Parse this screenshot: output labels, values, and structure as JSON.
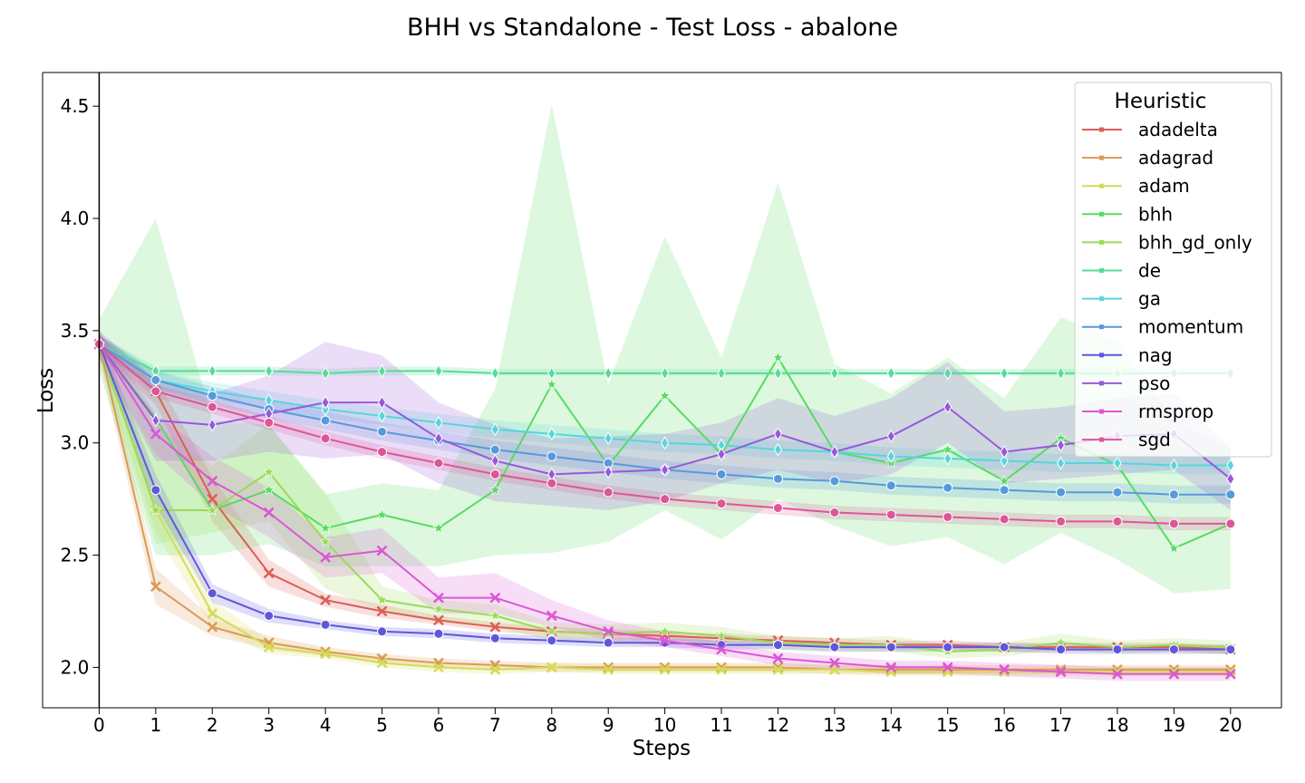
{
  "chart_data": {
    "type": "line",
    "title": "BHH vs Standalone - Test Loss - abalone",
    "xlabel": "Steps",
    "ylabel": "Loss",
    "x": [
      0,
      1,
      2,
      3,
      4,
      5,
      6,
      7,
      8,
      9,
      10,
      11,
      12,
      13,
      14,
      15,
      16,
      17,
      18,
      19,
      20
    ],
    "xlim": [
      -1.0,
      20.9
    ],
    "ylim": [
      1.82,
      4.65
    ],
    "yticks": [
      2.0,
      2.5,
      3.0,
      3.5,
      4.0,
      4.5
    ],
    "ytick_labels": [
      "2.0",
      "2.5",
      "3.0",
      "3.5",
      "4.0",
      "4.5"
    ],
    "xtick_labels": [
      "0",
      "1",
      "2",
      "3",
      "4",
      "5",
      "6",
      "7",
      "8",
      "9",
      "10",
      "11",
      "12",
      "13",
      "14",
      "15",
      "16",
      "17",
      "18",
      "19",
      "20"
    ],
    "legend": {
      "title": "Heuristic",
      "position": "top-right"
    },
    "grid": false,
    "series": [
      {
        "name": "adadelta",
        "color": "#db5f57",
        "marker": "x",
        "values": [
          3.44,
          3.23,
          2.75,
          2.42,
          2.3,
          2.25,
          2.21,
          2.18,
          2.16,
          2.15,
          2.14,
          2.13,
          2.12,
          2.11,
          2.1,
          2.1,
          2.09,
          2.09,
          2.09,
          2.09,
          2.08
        ],
        "lower": [
          3.4,
          3.17,
          2.65,
          2.36,
          2.27,
          2.22,
          2.19,
          2.16,
          2.14,
          2.13,
          2.12,
          2.11,
          2.1,
          2.09,
          2.08,
          2.08,
          2.07,
          2.07,
          2.07,
          2.07,
          2.06
        ],
        "upper": [
          3.48,
          3.29,
          2.85,
          2.48,
          2.33,
          2.28,
          2.23,
          2.2,
          2.18,
          2.17,
          2.16,
          2.15,
          2.14,
          2.13,
          2.12,
          2.12,
          2.11,
          2.11,
          2.11,
          2.11,
          2.1
        ]
      },
      {
        "name": "adagrad",
        "color": "#db9a57",
        "marker": "x",
        "values": [
          3.44,
          2.36,
          2.18,
          2.11,
          2.07,
          2.04,
          2.02,
          2.01,
          2.0,
          2.0,
          2.0,
          2.0,
          2.0,
          1.99,
          1.99,
          1.99,
          1.99,
          1.99,
          1.99,
          1.99,
          1.99
        ],
        "lower": [
          3.38,
          2.28,
          2.14,
          2.08,
          2.05,
          2.02,
          2.0,
          1.99,
          1.98,
          1.98,
          1.98,
          1.98,
          1.98,
          1.97,
          1.97,
          1.97,
          1.97,
          1.97,
          1.97,
          1.97,
          1.97
        ],
        "upper": [
          3.5,
          2.44,
          2.22,
          2.14,
          2.09,
          2.06,
          2.04,
          2.03,
          2.02,
          2.02,
          2.02,
          2.02,
          2.02,
          2.01,
          2.01,
          2.01,
          2.01,
          2.01,
          2.01,
          2.01,
          2.01
        ]
      },
      {
        "name": "adam",
        "color": "#d5db57",
        "marker": "x",
        "values": [
          3.44,
          2.7,
          2.24,
          2.09,
          2.06,
          2.02,
          2.0,
          1.99,
          2.0,
          1.99,
          1.99,
          1.99,
          1.99,
          1.99,
          1.98,
          1.98,
          1.98,
          1.98,
          1.98,
          1.98,
          1.98
        ],
        "lower": [
          3.38,
          2.6,
          2.18,
          2.06,
          2.04,
          2.0,
          1.98,
          1.97,
          1.98,
          1.97,
          1.97,
          1.97,
          1.97,
          1.97,
          1.96,
          1.96,
          1.96,
          1.96,
          1.96,
          1.96,
          1.96
        ],
        "upper": [
          3.5,
          2.8,
          2.3,
          2.12,
          2.08,
          2.04,
          2.02,
          2.01,
          2.02,
          2.01,
          2.01,
          2.01,
          2.01,
          2.01,
          2.0,
          2.0,
          2.0,
          2.0,
          2.0,
          2.0,
          2.0
        ]
      },
      {
        "name": "bhh",
        "color": "#57db5f",
        "marker": "star",
        "values": [
          3.44,
          3.11,
          2.7,
          2.79,
          2.62,
          2.68,
          2.62,
          2.79,
          3.26,
          2.9,
          3.21,
          2.95,
          3.38,
          2.96,
          2.91,
          2.97,
          2.83,
          3.02,
          2.9,
          2.53,
          2.64
        ],
        "lower": [
          3.32,
          2.5,
          2.5,
          2.55,
          2.45,
          2.45,
          2.45,
          2.5,
          2.51,
          2.56,
          2.7,
          2.57,
          2.75,
          2.63,
          2.54,
          2.58,
          2.46,
          2.6,
          2.48,
          2.33,
          2.35
        ],
        "upper": [
          3.55,
          4.0,
          3.1,
          3.08,
          2.77,
          2.82,
          2.79,
          3.24,
          4.51,
          3.26,
          3.92,
          3.38,
          4.16,
          3.35,
          3.22,
          3.38,
          3.2,
          3.56,
          3.45,
          3.1,
          2.98
        ]
      },
      {
        "name": "bhh_gd_only",
        "color": "#9adb57",
        "marker": "star",
        "values": [
          3.44,
          2.7,
          2.7,
          2.87,
          2.56,
          2.3,
          2.26,
          2.23,
          2.16,
          2.15,
          2.16,
          2.14,
          2.11,
          2.1,
          2.1,
          2.07,
          2.08,
          2.11,
          2.09,
          2.1,
          2.09
        ],
        "lower": [
          3.38,
          2.55,
          2.6,
          2.65,
          2.35,
          2.25,
          2.2,
          2.18,
          2.12,
          2.11,
          2.12,
          2.1,
          2.08,
          2.07,
          2.07,
          2.04,
          2.05,
          2.08,
          2.06,
          2.07,
          2.06
        ],
        "upper": [
          3.5,
          3.08,
          2.9,
          3.08,
          2.78,
          2.36,
          2.3,
          2.28,
          2.2,
          2.19,
          2.2,
          2.18,
          2.14,
          2.13,
          2.14,
          2.1,
          2.11,
          2.15,
          2.12,
          2.13,
          2.12
        ]
      },
      {
        "name": "de",
        "color": "#57db9a",
        "marker": "diamond",
        "values": [
          3.44,
          3.32,
          3.32,
          3.32,
          3.31,
          3.32,
          3.32,
          3.31,
          3.31,
          3.31,
          3.31,
          3.31,
          3.31,
          3.31,
          3.31,
          3.31,
          3.31,
          3.31,
          3.31,
          3.31,
          3.31
        ],
        "lower": [
          3.4,
          3.3,
          3.3,
          3.3,
          3.3,
          3.3,
          3.3,
          3.3,
          3.3,
          3.3,
          3.3,
          3.3,
          3.3,
          3.3,
          3.3,
          3.3,
          3.3,
          3.3,
          3.3,
          3.3,
          3.3
        ],
        "upper": [
          3.48,
          3.34,
          3.34,
          3.34,
          3.33,
          3.34,
          3.34,
          3.33,
          3.33,
          3.33,
          3.33,
          3.33,
          3.33,
          3.33,
          3.33,
          3.33,
          3.33,
          3.33,
          3.33,
          3.33,
          3.33
        ]
      },
      {
        "name": "ga",
        "color": "#57d5db",
        "marker": "diamond",
        "values": [
          3.44,
          3.28,
          3.23,
          3.19,
          3.15,
          3.12,
          3.09,
          3.06,
          3.04,
          3.02,
          3.0,
          2.99,
          2.97,
          2.96,
          2.94,
          2.93,
          2.92,
          2.91,
          2.91,
          2.9,
          2.9
        ],
        "lower": [
          3.4,
          3.24,
          3.19,
          3.15,
          3.11,
          3.08,
          3.05,
          3.02,
          3.0,
          2.98,
          2.96,
          2.95,
          2.93,
          2.92,
          2.9,
          2.89,
          2.88,
          2.87,
          2.87,
          2.86,
          2.86
        ],
        "upper": [
          3.48,
          3.32,
          3.27,
          3.23,
          3.19,
          3.16,
          3.13,
          3.1,
          3.08,
          3.06,
          3.04,
          3.03,
          3.01,
          3.0,
          2.98,
          2.97,
          2.96,
          2.95,
          2.95,
          2.94,
          2.94
        ]
      },
      {
        "name": "momentum",
        "color": "#579adb",
        "marker": "circle",
        "values": [
          3.44,
          3.28,
          3.21,
          3.15,
          3.1,
          3.05,
          3.01,
          2.97,
          2.94,
          2.91,
          2.88,
          2.86,
          2.84,
          2.83,
          2.81,
          2.8,
          2.79,
          2.78,
          2.78,
          2.77,
          2.77
        ],
        "lower": [
          3.4,
          3.24,
          3.17,
          3.11,
          3.06,
          3.01,
          2.97,
          2.93,
          2.9,
          2.87,
          2.84,
          2.82,
          2.8,
          2.79,
          2.77,
          2.76,
          2.75,
          2.74,
          2.74,
          2.73,
          2.73
        ],
        "upper": [
          3.48,
          3.32,
          3.25,
          3.19,
          3.14,
          3.09,
          3.05,
          3.01,
          2.98,
          2.95,
          2.92,
          2.9,
          2.88,
          2.87,
          2.85,
          2.84,
          2.83,
          2.82,
          2.82,
          2.81,
          2.81
        ]
      },
      {
        "name": "nag",
        "color": "#5f57db",
        "marker": "circle",
        "values": [
          3.44,
          2.79,
          2.33,
          2.23,
          2.19,
          2.16,
          2.15,
          2.13,
          2.12,
          2.11,
          2.11,
          2.1,
          2.1,
          2.09,
          2.09,
          2.09,
          2.09,
          2.08,
          2.08,
          2.08,
          2.08
        ],
        "lower": [
          3.4,
          2.72,
          2.29,
          2.2,
          2.17,
          2.14,
          2.13,
          2.11,
          2.1,
          2.09,
          2.09,
          2.08,
          2.08,
          2.07,
          2.07,
          2.07,
          2.07,
          2.06,
          2.06,
          2.06,
          2.06
        ],
        "upper": [
          3.48,
          2.86,
          2.37,
          2.26,
          2.21,
          2.18,
          2.17,
          2.15,
          2.14,
          2.13,
          2.13,
          2.12,
          2.12,
          2.11,
          2.11,
          2.11,
          2.11,
          2.1,
          2.1,
          2.1,
          2.1
        ]
      },
      {
        "name": "pso",
        "color": "#9a57db",
        "marker": "diamond",
        "values": [
          3.44,
          3.1,
          3.08,
          3.13,
          3.18,
          3.18,
          3.02,
          2.92,
          2.86,
          2.87,
          2.88,
          2.95,
          3.04,
          2.96,
          3.03,
          3.16,
          2.96,
          2.99,
          3.03,
          3.04,
          2.84
        ],
        "lower": [
          3.38,
          2.92,
          2.92,
          2.96,
          2.93,
          2.95,
          2.82,
          2.74,
          2.72,
          2.7,
          2.74,
          2.82,
          2.88,
          2.82,
          2.86,
          3.0,
          2.82,
          2.84,
          2.86,
          2.88,
          2.7
        ],
        "upper": [
          3.5,
          3.28,
          3.22,
          3.3,
          3.45,
          3.39,
          3.18,
          3.08,
          3.02,
          3.03,
          3.04,
          3.09,
          3.2,
          3.12,
          3.2,
          3.36,
          3.14,
          3.16,
          3.2,
          3.22,
          2.98
        ]
      },
      {
        "name": "rmsprop",
        "color": "#db57d5",
        "marker": "x",
        "values": [
          3.44,
          3.04,
          2.83,
          2.69,
          2.49,
          2.52,
          2.31,
          2.31,
          2.23,
          2.16,
          2.12,
          2.08,
          2.04,
          2.02,
          2.0,
          2.0,
          1.99,
          1.98,
          1.97,
          1.97,
          1.97
        ],
        "lower": [
          3.38,
          2.95,
          2.72,
          2.58,
          2.4,
          2.42,
          2.24,
          2.24,
          2.18,
          2.12,
          2.09,
          2.05,
          2.01,
          1.99,
          1.97,
          1.97,
          1.96,
          1.95,
          1.94,
          1.94,
          1.94
        ],
        "upper": [
          3.5,
          3.13,
          2.94,
          2.8,
          2.58,
          2.62,
          2.4,
          2.42,
          2.3,
          2.21,
          2.16,
          2.11,
          2.07,
          2.05,
          2.03,
          2.03,
          2.02,
          2.01,
          2.0,
          2.0,
          2.0
        ]
      },
      {
        "name": "sgd",
        "color": "#db5797",
        "marker": "circle",
        "values": [
          3.44,
          3.23,
          3.16,
          3.09,
          3.02,
          2.96,
          2.91,
          2.86,
          2.82,
          2.78,
          2.75,
          2.73,
          2.71,
          2.69,
          2.68,
          2.67,
          2.66,
          2.65,
          2.65,
          2.64,
          2.64
        ],
        "lower": [
          3.4,
          3.2,
          3.13,
          3.06,
          2.99,
          2.93,
          2.88,
          2.83,
          2.79,
          2.75,
          2.72,
          2.7,
          2.68,
          2.66,
          2.65,
          2.64,
          2.63,
          2.62,
          2.62,
          2.61,
          2.61
        ],
        "upper": [
          3.48,
          3.26,
          3.19,
          3.12,
          3.05,
          2.99,
          2.94,
          2.89,
          2.85,
          2.81,
          2.78,
          2.76,
          2.74,
          2.72,
          2.71,
          2.7,
          2.69,
          2.68,
          2.68,
          2.67,
          2.67
        ]
      }
    ]
  }
}
